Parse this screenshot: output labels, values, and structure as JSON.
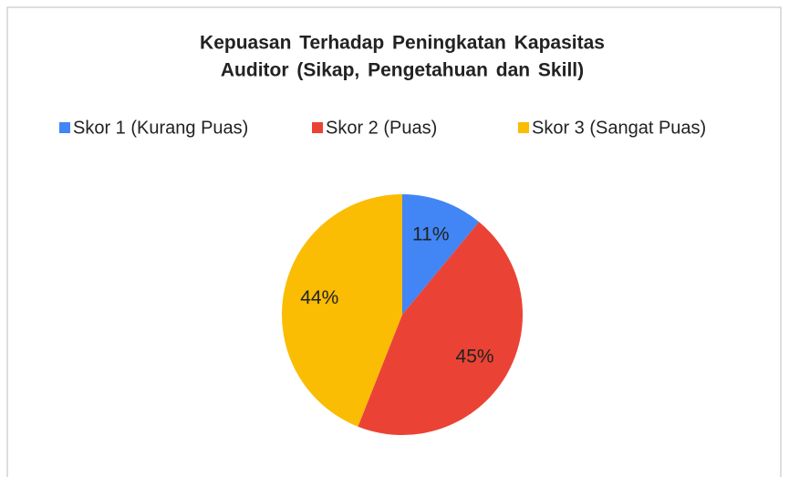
{
  "chart_data": {
    "type": "pie",
    "title": [
      "Kepuasan Terhadap Peningkatan Kapasitas",
      "Auditor (Sikap, Pengetahuan dan Skill)"
    ],
    "categories": [
      "Skor 1 (Kurang Puas)",
      "Skor 2 (Puas)",
      "Skor 3 (Sangat Puas)"
    ],
    "values": [
      11,
      45,
      44
    ],
    "value_labels": [
      "11%",
      "45%",
      "44%"
    ],
    "colors": [
      "#4285f4",
      "#ea4335",
      "#fbbc04"
    ],
    "legend": "top"
  }
}
